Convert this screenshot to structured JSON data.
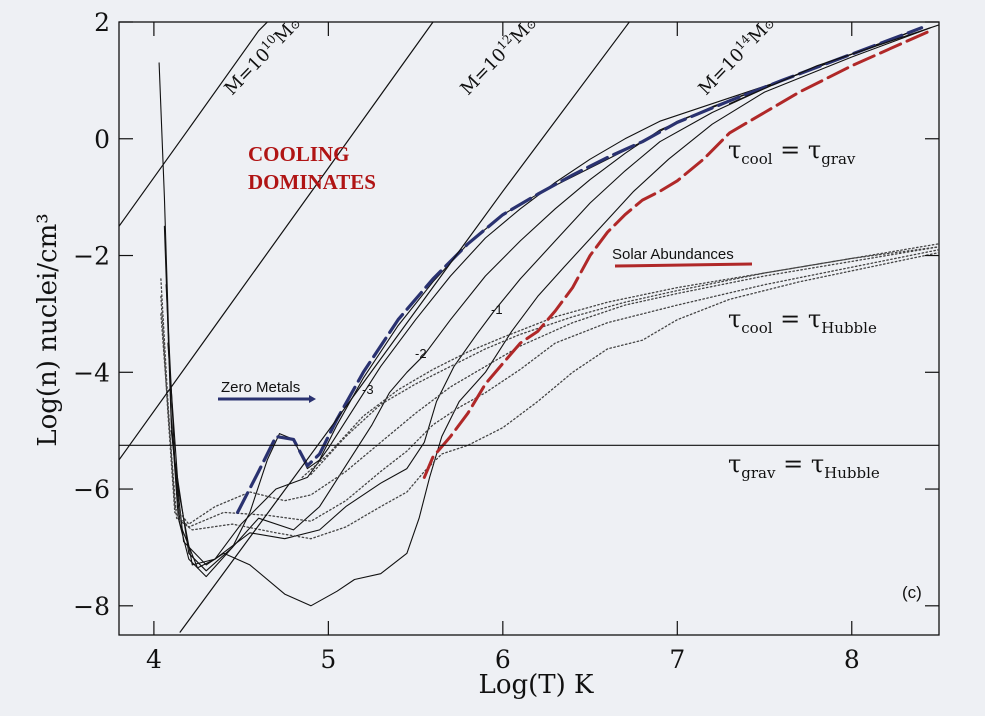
{
  "chart_data": {
    "type": "line",
    "xlabel": "Log(T) K",
    "ylabel": "Log(n) nuclei/cm³",
    "xlim": [
      3.8,
      8.5
    ],
    "ylim": [
      -8.5,
      2
    ],
    "x_ticks": [
      "4",
      "5",
      "6",
      "7",
      "8"
    ],
    "y_ticks": [
      "2",
      "0",
      "−2",
      "−4",
      "−6",
      "−8"
    ],
    "x_tick_values": [
      4,
      5,
      6,
      7,
      8
    ],
    "y_tick_values": [
      2,
      0,
      -2,
      -4,
      -6,
      -8
    ],
    "panel_label": "(c)",
    "annotations": {
      "cooling": [
        "COOLING",
        "DOMINATES"
      ],
      "zero_metals": "Zero Metals",
      "solar_abundances": "Solar Abundances",
      "mass_lines": [
        "M=10",
        "M=10",
        "M=10"
      ],
      "mass_exponents": [
        "10",
        "12",
        "14"
      ],
      "mass_unit": "M",
      "tau_cool_grav": "τcool = τgrav",
      "tau_cool_hubble": "τcool = τHubble",
      "tau_grav_hubble": "τgrav = τHubble",
      "metal_labels": [
        "-3",
        "-2",
        "-1"
      ]
    },
    "colors": {
      "zero_metals": "#2a3270",
      "solar": "#b02828",
      "line": "#111111",
      "cooling_text": "#b01414"
    },
    "series": [
      {
        "style": "solid-thin",
        "points": [
          [
            4.03,
            1.3
          ],
          [
            4.06,
            -1.0
          ],
          [
            4.1,
            -4.8
          ],
          [
            4.14,
            -6.5
          ],
          [
            4.2,
            -7.2
          ],
          [
            4.3,
            -7.5
          ],
          [
            4.45,
            -7.0
          ],
          [
            4.55,
            -6.4
          ],
          [
            4.65,
            -5.5
          ],
          [
            4.72,
            -5.05
          ],
          [
            4.8,
            -5.15
          ],
          [
            4.88,
            -5.65
          ],
          [
            4.95,
            -5.5
          ],
          [
            5.05,
            -4.9
          ],
          [
            5.2,
            -4.1
          ],
          [
            5.4,
            -3.2
          ],
          [
            5.6,
            -2.45
          ],
          [
            5.8,
            -1.8
          ],
          [
            6.0,
            -1.3
          ],
          [
            6.2,
            -0.95
          ],
          [
            6.4,
            -0.65
          ],
          [
            6.6,
            -0.35
          ],
          [
            6.8,
            -0.05
          ],
          [
            7.0,
            0.3
          ],
          [
            7.3,
            0.65
          ],
          [
            7.6,
            1.0
          ],
          [
            8.0,
            1.45
          ],
          [
            8.4,
            1.9
          ]
        ]
      },
      {
        "style": "solid-thin",
        "points": [
          [
            4.06,
            -1.5
          ],
          [
            4.1,
            -4.9
          ],
          [
            4.15,
            -6.6
          ],
          [
            4.25,
            -7.35
          ],
          [
            4.35,
            -7.2
          ],
          [
            4.5,
            -6.6
          ],
          [
            4.7,
            -6.0
          ],
          [
            4.88,
            -5.8
          ],
          [
            5.0,
            -5.3
          ],
          [
            5.15,
            -4.6
          ],
          [
            5.3,
            -3.9
          ],
          [
            5.5,
            -3.1
          ],
          [
            5.7,
            -2.35
          ],
          [
            5.9,
            -1.7
          ],
          [
            6.1,
            -1.2
          ],
          [
            6.3,
            -0.75
          ],
          [
            6.5,
            -0.35
          ],
          [
            6.7,
            0.0
          ],
          [
            6.9,
            0.3
          ],
          [
            7.2,
            0.6
          ],
          [
            7.6,
            1.0
          ],
          [
            8.0,
            1.45
          ],
          [
            8.4,
            1.9
          ]
        ]
      },
      {
        "style": "solid-thin",
        "points": [
          [
            4.07,
            -2.5
          ],
          [
            4.12,
            -5.5
          ],
          [
            4.2,
            -7.1
          ],
          [
            4.3,
            -7.4
          ],
          [
            4.45,
            -7.0
          ],
          [
            4.6,
            -6.5
          ],
          [
            4.8,
            -6.7
          ],
          [
            4.95,
            -6.3
          ],
          [
            5.1,
            -5.6
          ],
          [
            5.25,
            -4.9
          ],
          [
            5.35,
            -4.35
          ],
          [
            5.45,
            -4.0
          ],
          [
            5.55,
            -3.7
          ],
          [
            5.7,
            -3.1
          ],
          [
            5.9,
            -2.35
          ],
          [
            6.1,
            -1.75
          ],
          [
            6.3,
            -1.2
          ],
          [
            6.5,
            -0.7
          ],
          [
            6.7,
            -0.25
          ],
          [
            6.9,
            0.15
          ],
          [
            7.2,
            0.55
          ],
          [
            7.6,
            1.0
          ],
          [
            8.0,
            1.45
          ],
          [
            8.4,
            1.9
          ]
        ]
      },
      {
        "style": "solid-thin",
        "points": [
          [
            4.08,
            -3.5
          ],
          [
            4.14,
            -6.0
          ],
          [
            4.22,
            -7.3
          ],
          [
            4.35,
            -7.2
          ],
          [
            4.55,
            -6.75
          ],
          [
            4.75,
            -6.85
          ],
          [
            4.95,
            -6.7
          ],
          [
            5.1,
            -6.3
          ],
          [
            5.3,
            -5.9
          ],
          [
            5.45,
            -5.65
          ],
          [
            5.55,
            -5.2
          ],
          [
            5.62,
            -4.5
          ],
          [
            5.72,
            -3.9
          ],
          [
            5.85,
            -3.35
          ],
          [
            5.95,
            -2.95
          ],
          [
            6.1,
            -2.4
          ],
          [
            6.3,
            -1.75
          ],
          [
            6.5,
            -1.1
          ],
          [
            6.7,
            -0.55
          ],
          [
            6.9,
            -0.05
          ],
          [
            7.2,
            0.45
          ],
          [
            7.6,
            1.0
          ],
          [
            8.0,
            1.45
          ],
          [
            8.4,
            1.9
          ]
        ]
      },
      {
        "style": "solid-thin",
        "points": [
          [
            4.1,
            -5.0
          ],
          [
            4.17,
            -6.9
          ],
          [
            4.3,
            -7.3
          ],
          [
            4.4,
            -7.1
          ],
          [
            4.55,
            -7.3
          ],
          [
            4.75,
            -7.8
          ],
          [
            4.9,
            -8.0
          ],
          [
            5.05,
            -7.75
          ],
          [
            5.15,
            -7.55
          ],
          [
            5.3,
            -7.45
          ],
          [
            5.45,
            -7.1
          ],
          [
            5.52,
            -6.5
          ],
          [
            5.58,
            -5.8
          ],
          [
            5.65,
            -5.1
          ],
          [
            5.75,
            -4.5
          ],
          [
            5.9,
            -4.0
          ],
          [
            6.05,
            -3.3
          ],
          [
            6.2,
            -2.7
          ],
          [
            6.35,
            -2.2
          ],
          [
            6.55,
            -1.55
          ],
          [
            6.75,
            -0.9
          ],
          [
            6.95,
            -0.35
          ],
          [
            7.2,
            0.25
          ],
          [
            7.5,
            0.8
          ],
          [
            8.0,
            1.4
          ],
          [
            8.45,
            1.9
          ]
        ]
      },
      {
        "style": "dotted",
        "points": [
          [
            4.04,
            -2.4
          ],
          [
            4.08,
            -4.5
          ],
          [
            4.12,
            -6.3
          ],
          [
            4.2,
            -6.6
          ],
          [
            4.35,
            -6.3
          ],
          [
            4.55,
            -6.05
          ],
          [
            4.75,
            -6.2
          ],
          [
            4.9,
            -6.1
          ],
          [
            5.1,
            -5.7
          ],
          [
            5.3,
            -5.2
          ],
          [
            5.5,
            -4.7
          ],
          [
            5.7,
            -4.25
          ],
          [
            5.9,
            -3.9
          ],
          [
            6.1,
            -3.55
          ],
          [
            6.4,
            -3.15
          ],
          [
            6.7,
            -2.85
          ],
          [
            7.0,
            -2.65
          ],
          [
            7.5,
            -2.35
          ],
          [
            8.0,
            -2.1
          ],
          [
            8.5,
            -1.85
          ]
        ]
      },
      {
        "style": "dotted",
        "points": [
          [
            4.04,
            -2.7
          ],
          [
            4.08,
            -4.7
          ],
          [
            4.12,
            -6.4
          ],
          [
            4.2,
            -6.65
          ],
          [
            4.4,
            -6.4
          ],
          [
            4.65,
            -6.45
          ],
          [
            4.9,
            -6.55
          ],
          [
            5.1,
            -6.2
          ],
          [
            5.3,
            -5.7
          ],
          [
            5.45,
            -5.35
          ],
          [
            5.6,
            -4.9
          ],
          [
            5.75,
            -4.6
          ],
          [
            5.9,
            -4.35
          ],
          [
            6.1,
            -3.95
          ],
          [
            6.3,
            -3.5
          ],
          [
            6.6,
            -3.15
          ],
          [
            7.0,
            -2.85
          ],
          [
            7.5,
            -2.5
          ],
          [
            8.0,
            -2.2
          ],
          [
            8.5,
            -1.9
          ]
        ]
      },
      {
        "style": "dotted",
        "points": [
          [
            4.04,
            -3.0
          ],
          [
            4.09,
            -5.0
          ],
          [
            4.13,
            -6.5
          ],
          [
            4.22,
            -6.7
          ],
          [
            4.45,
            -6.6
          ],
          [
            4.7,
            -6.75
          ],
          [
            4.9,
            -6.85
          ],
          [
            5.1,
            -6.65
          ],
          [
            5.3,
            -6.3
          ],
          [
            5.45,
            -6.05
          ],
          [
            5.55,
            -5.7
          ],
          [
            5.65,
            -5.4
          ],
          [
            5.8,
            -5.25
          ],
          [
            6.0,
            -4.95
          ],
          [
            6.2,
            -4.5
          ],
          [
            6.4,
            -4.0
          ],
          [
            6.6,
            -3.6
          ],
          [
            6.8,
            -3.45
          ],
          [
            7.0,
            -3.1
          ],
          [
            7.3,
            -2.75
          ],
          [
            7.7,
            -2.45
          ],
          [
            8.1,
            -2.2
          ],
          [
            8.5,
            -1.95
          ]
        ]
      },
      {
        "style": "dotted",
        "points": [
          [
            4.85,
            -5.8
          ],
          [
            5.0,
            -5.4
          ],
          [
            5.2,
            -4.75
          ],
          [
            5.4,
            -4.3
          ],
          [
            5.6,
            -3.95
          ],
          [
            5.8,
            -3.65
          ],
          [
            6.0,
            -3.4
          ],
          [
            6.3,
            -3.05
          ],
          [
            6.6,
            -2.8
          ],
          [
            7.0,
            -2.55
          ],
          [
            7.5,
            -2.3
          ],
          [
            8.0,
            -2.05
          ],
          [
            8.5,
            -1.8
          ]
        ]
      },
      {
        "style": "dotted",
        "points": [
          [
            4.9,
            -5.75
          ],
          [
            5.1,
            -5.1
          ],
          [
            5.3,
            -4.55
          ],
          [
            5.5,
            -4.2
          ],
          [
            5.7,
            -3.9
          ],
          [
            5.9,
            -3.6
          ],
          [
            6.1,
            -3.35
          ],
          [
            6.4,
            -3.05
          ],
          [
            6.7,
            -2.8
          ],
          [
            7.0,
            -2.6
          ],
          [
            7.5,
            -2.3
          ],
          [
            8.0,
            -2.05
          ],
          [
            8.5,
            -1.85
          ]
        ]
      },
      {
        "style": "dashed-zero",
        "points": [
          [
            4.48,
            -6.4
          ],
          [
            4.6,
            -5.7
          ],
          [
            4.7,
            -5.1
          ],
          [
            4.8,
            -5.15
          ],
          [
            4.88,
            -5.6
          ],
          [
            4.95,
            -5.4
          ],
          [
            5.05,
            -4.8
          ],
          [
            5.2,
            -4.0
          ],
          [
            5.4,
            -3.1
          ],
          [
            5.6,
            -2.4
          ],
          [
            5.8,
            -1.8
          ],
          [
            6.0,
            -1.3
          ],
          [
            6.2,
            -0.95
          ],
          [
            6.4,
            -0.62
          ],
          [
            6.6,
            -0.32
          ],
          [
            6.8,
            -0.05
          ],
          [
            7.0,
            0.28
          ],
          [
            7.3,
            0.65
          ],
          [
            7.6,
            1.0
          ],
          [
            8.0,
            1.45
          ],
          [
            8.4,
            1.9
          ]
        ]
      },
      {
        "style": "dashed-solar",
        "points": [
          [
            5.55,
            -5.8
          ],
          [
            5.6,
            -5.45
          ],
          [
            5.7,
            -5.1
          ],
          [
            5.8,
            -4.7
          ],
          [
            5.9,
            -4.2
          ],
          [
            6.0,
            -3.85
          ],
          [
            6.1,
            -3.5
          ],
          [
            6.2,
            -3.3
          ],
          [
            6.3,
            -2.95
          ],
          [
            6.4,
            -2.55
          ],
          [
            6.5,
            -2.0
          ],
          [
            6.6,
            -1.6
          ],
          [
            6.7,
            -1.3
          ],
          [
            6.8,
            -1.05
          ],
          [
            6.9,
            -0.9
          ],
          [
            7.0,
            -0.72
          ],
          [
            7.15,
            -0.35
          ],
          [
            7.3,
            0.1
          ],
          [
            7.5,
            0.45
          ],
          [
            7.7,
            0.8
          ],
          [
            8.0,
            1.25
          ],
          [
            8.3,
            1.65
          ],
          [
            8.45,
            1.85
          ]
        ]
      },
      {
        "style": "ref",
        "points": [
          [
            3.8,
            -1.5
          ],
          [
            4.2,
            0.17
          ],
          [
            4.6,
            1.85
          ],
          [
            4.75,
            2.3
          ]
        ]
      },
      {
        "style": "ref",
        "points": [
          [
            3.8,
            -5.5
          ],
          [
            4.4,
            -3.0
          ],
          [
            5.0,
            -0.5
          ],
          [
            5.6,
            2.0
          ],
          [
            5.7,
            2.3
          ]
        ]
      },
      {
        "style": "ref",
        "points": [
          [
            4.15,
            -8.45
          ],
          [
            5.0,
            -5.0
          ],
          [
            6.0,
            -0.9
          ],
          [
            6.7,
            1.9
          ],
          [
            6.8,
            2.3
          ]
        ]
      },
      {
        "style": "ref",
        "points": [
          [
            3.8,
            -5.25
          ],
          [
            8.5,
            -5.25
          ]
        ]
      },
      {
        "style": "ref",
        "points": [
          [
            7.3,
            0.6
          ],
          [
            7.8,
            1.25
          ],
          [
            8.5,
            1.95
          ]
        ]
      }
    ]
  }
}
